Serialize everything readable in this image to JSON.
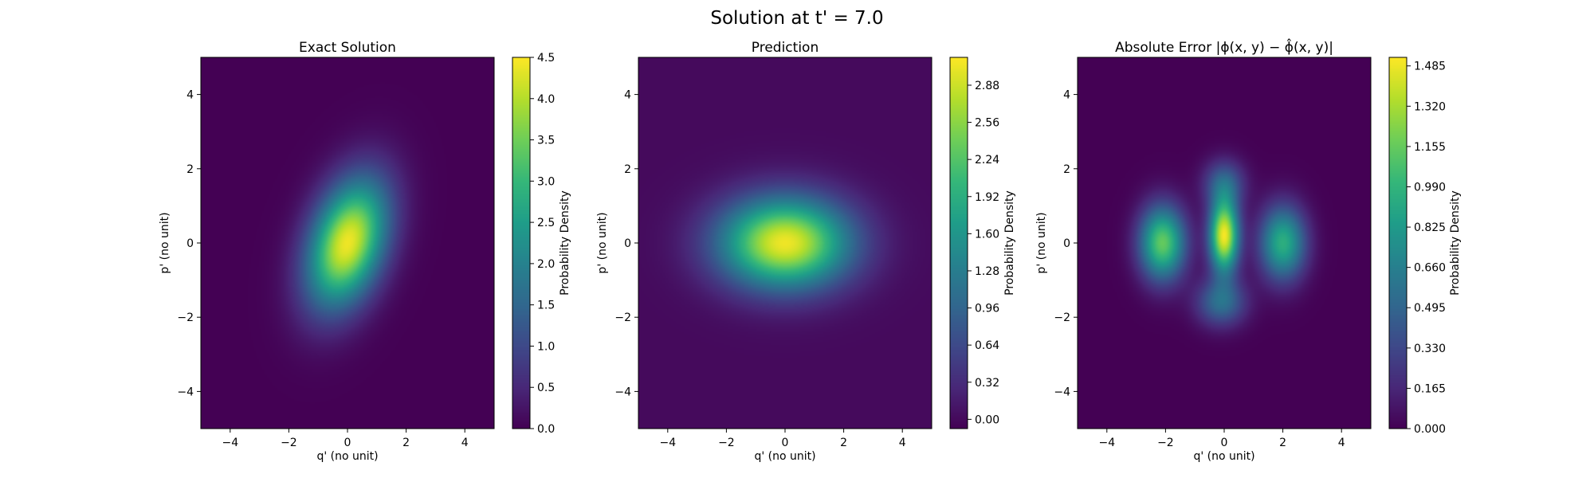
{
  "figure": {
    "suptitle": "Solution at t' = 7.0"
  },
  "colors": {
    "colormap": "viridis",
    "viridis_stops": [
      "#440154",
      "#482878",
      "#3e4989",
      "#31688e",
      "#26828e",
      "#1f9e89",
      "#35b779",
      "#6ece58",
      "#b5de2b",
      "#fde725"
    ]
  },
  "chart_data": [
    {
      "type": "heatmap",
      "title": "Exact Solution",
      "xlabel": "q' (no unit)",
      "ylabel": "p' (no unit)",
      "xlim": [
        -5,
        5
      ],
      "ylim": [
        -5,
        5
      ],
      "xticks": [
        "−4",
        "−2",
        "0",
        "2",
        "4"
      ],
      "yticks": [
        "−4",
        "−2",
        "0",
        "2",
        "4"
      ],
      "colorbar": {
        "label": "Probability Density",
        "range": [
          0,
          4.5
        ],
        "ticks": [
          "0.0",
          "0.5",
          "1.0",
          "1.5",
          "2.0",
          "2.5",
          "3.0",
          "3.5",
          "4.0",
          "4.5"
        ]
      },
      "peak_value": 4.4,
      "blobs": [
        {
          "center": [
            0.0,
            0.0
          ],
          "sigma": [
            0.95,
            1.2
          ],
          "rho": 0.35,
          "amplitude": 4.4
        }
      ]
    },
    {
      "type": "heatmap",
      "title": "Prediction",
      "xlabel": "q' (no unit)",
      "ylabel": "p' (no unit)",
      "xlim": [
        -5,
        5
      ],
      "ylim": [
        -5,
        5
      ],
      "xticks": [
        "−4",
        "−2",
        "0",
        "2",
        "4"
      ],
      "yticks": [
        "−4",
        "−2",
        "0",
        "2",
        "4"
      ],
      "colorbar": {
        "label": "Probability Density",
        "range": [
          -0.08,
          3.12
        ],
        "ticks": [
          "0.00",
          "0.32",
          "0.64",
          "0.96",
          "1.28",
          "1.60",
          "1.92",
          "2.24",
          "2.56",
          "2.88"
        ]
      },
      "peak_value": 3.05,
      "blobs": [
        {
          "center": [
            0.0,
            0.0
          ],
          "sigma": [
            1.55,
            0.85
          ],
          "rho": 0.0,
          "amplitude": 3.05
        }
      ]
    },
    {
      "type": "heatmap",
      "title": "Absolute Error |ϕ(x, y) − ϕ̂(x, y)|",
      "xlabel": "q' (no unit)",
      "ylabel": "p' (no unit)",
      "xlim": [
        -5,
        5
      ],
      "ylim": [
        -5,
        5
      ],
      "xticks": [
        "−4",
        "−2",
        "0",
        "2",
        "4"
      ],
      "yticks": [
        "−4",
        "−2",
        "0",
        "2",
        "4"
      ],
      "colorbar": {
        "label": "Probability Density",
        "range": [
          0,
          1.52
        ],
        "ticks": [
          "0.000",
          "0.165",
          "0.330",
          "0.495",
          "0.660",
          "0.825",
          "0.990",
          "1.155",
          "1.320",
          "1.485"
        ]
      },
      "peak_value": 1.5,
      "blobs": [
        {
          "center": [
            0.0,
            0.2
          ],
          "sigma": [
            0.35,
            0.7
          ],
          "rho": 0.0,
          "amplitude": 1.5
        },
        {
          "center": [
            -2.1,
            0.0
          ],
          "sigma": [
            0.55,
            0.7
          ],
          "rho": 0.0,
          "amplitude": 1.15
        },
        {
          "center": [
            2.0,
            0.0
          ],
          "sigma": [
            0.55,
            0.7
          ],
          "rho": 0.0,
          "amplitude": 0.95
        },
        {
          "center": [
            -0.1,
            -1.6
          ],
          "sigma": [
            0.6,
            0.45
          ],
          "rho": 0.0,
          "amplitude": 0.55
        },
        {
          "center": [
            0.0,
            1.6
          ],
          "sigma": [
            0.5,
            0.45
          ],
          "rho": 0.0,
          "amplitude": 0.45
        }
      ]
    }
  ]
}
